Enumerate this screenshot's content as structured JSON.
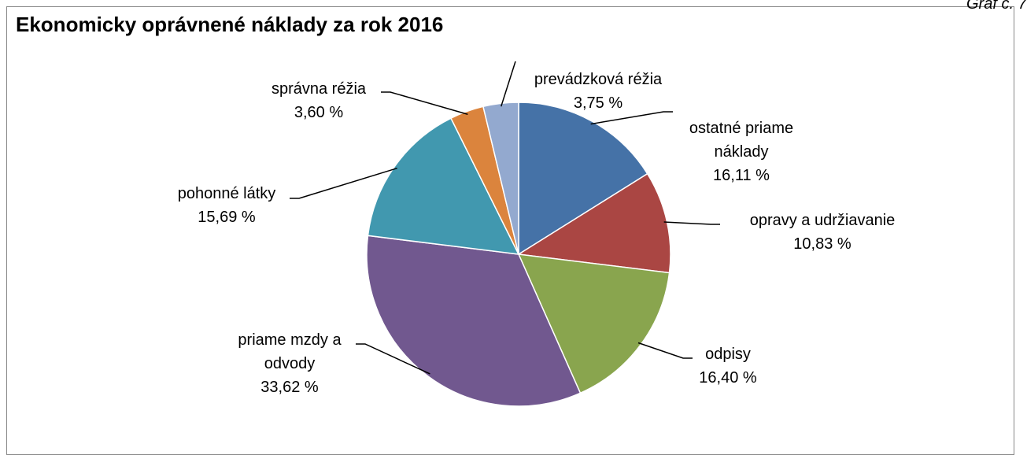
{
  "chart_data": {
    "type": "pie",
    "title": "Ekonomicky oprávnené náklady za rok 2016",
    "figure_label": "Graf č. 7",
    "categories": [
      "ostatné priame náklady",
      "opravy a udržiavanie",
      "odpisy",
      "priame mzdy a odvody",
      "pohonné látky",
      "správna réžia",
      "prevádzková réžia"
    ],
    "values": [
      16.11,
      10.83,
      16.4,
      33.62,
      15.69,
      3.6,
      3.75
    ],
    "value_labels": [
      "16,11 %",
      "10,83 %",
      "16,40 %",
      "33,62 %",
      "15,69 %",
      "3,60 %",
      "3,75 %"
    ],
    "colors": [
      "#4572a7",
      "#aa4643",
      "#89a54e",
      "#71588f",
      "#4198af",
      "#db843d",
      "#93a9cf"
    ]
  }
}
